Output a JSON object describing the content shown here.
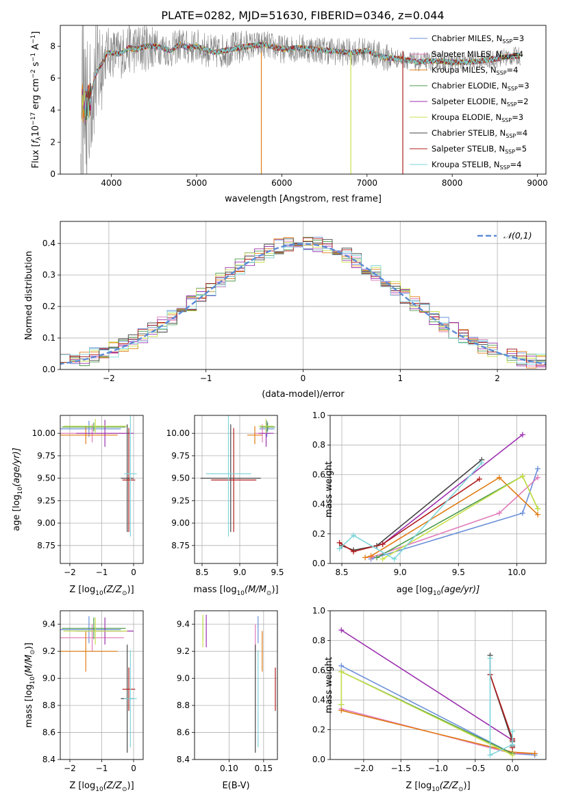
{
  "figure": {
    "title": "PLATE=0282, MJD=51630, FIBERID=0346, z=0.044"
  },
  "colors": {
    "Chabrier MILES": "#6a8fd8",
    "Salpeter MILES": "#e07ab9",
    "Kroupa MILES": "#e07b12",
    "Chabrier ELODIE": "#4c9a4c",
    "Salpeter ELODIE": "#9b2fae",
    "Kroupa ELODIE": "#c8e04a",
    "Chabrier STELIB": "#444444",
    "Salpeter STELIB": "#b01c1c",
    "Kroupa STELIB": "#7ed6db",
    "data": "#808080",
    "normal": "#5b8ad6"
  },
  "chart_data": [
    {
      "id": "spectrum",
      "type": "line",
      "xlabel": "wavelength [Angstrom, rest frame]",
      "ylabel": "Flux [f_λ10^-17 erg cm^-2 s^-1 A^-1]",
      "xlim": [
        3400,
        9100
      ],
      "ylim": [
        0,
        9.3
      ],
      "xticks": [
        4000,
        5000,
        6000,
        7000,
        8000,
        9000
      ],
      "yticks": [
        0,
        2,
        4,
        6,
        8
      ],
      "grid": false,
      "legend_position": "right",
      "continuum": {
        "x": [
          3650,
          3700,
          3750,
          3800,
          3850,
          3900,
          3950,
          4000,
          4100,
          4200,
          4300,
          4400,
          4500,
          4600,
          4700,
          4800,
          4900,
          5000,
          5200,
          5400,
          5600,
          5800,
          6000,
          6200,
          6400,
          6600,
          6800,
          7000,
          7200,
          7400,
          7600,
          7800,
          8000,
          8200,
          8400,
          8600,
          8800
        ],
        "y": [
          4.5,
          4.2,
          4.6,
          6.0,
          6.6,
          7.0,
          7.6,
          7.6,
          7.5,
          7.9,
          7.8,
          8.0,
          8.0,
          7.9,
          7.7,
          8.1,
          7.9,
          8.0,
          7.6,
          7.8,
          8.0,
          8.1,
          7.8,
          7.9,
          7.8,
          7.7,
          7.6,
          7.7,
          7.3,
          7.2,
          7.0,
          7.1,
          7.0,
          7.0,
          7.1,
          7.3,
          7.4
        ]
      },
      "legend": [
        {
          "label": "Chabrier MILES, N_SSP=3",
          "text": "Chabrier MILES, N",
          "n": "=3"
        },
        {
          "label": "Salpeter MILES, N_SSP=4",
          "text": "Salpeter MILES, N",
          "n": "=4"
        },
        {
          "label": "Kroupa MILES, N_SSP=4",
          "text": "Kroupa MILES, N",
          "n": "=4"
        },
        {
          "label": "Chabrier ELODIE, N_SSP=3",
          "text": "Chabrier ELODIE, N",
          "n": "=3"
        },
        {
          "label": "Salpeter ELODIE, N_SSP=2",
          "text": "Salpeter ELODIE, N",
          "n": "=2"
        },
        {
          "label": "Kroupa ELODIE, N_SSP=3",
          "text": "Kroupa ELODIE, N",
          "n": "=3"
        },
        {
          "label": "Chabrier STELIB, N_SSP=4",
          "text": "Chabrier STELIB, N",
          "n": "=4"
        },
        {
          "label": "Salpeter STELIB, N_SSP=5",
          "text": "Salpeter STELIB, N",
          "n": "=5"
        },
        {
          "label": "Kroupa STELIB, N_SSP=4",
          "text": "Kroupa STELIB, N",
          "n": "=4"
        }
      ]
    },
    {
      "id": "residuals",
      "type": "line",
      "xlabel": "(data-model)/error",
      "ylabel": "Normed distribution",
      "xlim": [
        -2.5,
        2.5
      ],
      "ylim": [
        0,
        0.47
      ],
      "xticks": [
        -2,
        -1,
        0,
        1,
        2
      ],
      "yticks": [
        0.0,
        0.1,
        0.2,
        0.3,
        0.4
      ],
      "grid": true,
      "legend": "𝒩(0,1)",
      "legend_position": "top-right",
      "bin_width": 0.1
    },
    {
      "id": "age_vs_Z",
      "type": "scatter",
      "xlabel_main": "Z [log",
      "xlabel_sub": "10",
      "xlabel_rest": "(Z/Z",
      "xlabel_sun": "⊙",
      "xlabel_end": ")]",
      "ylabel": "age  [log10(age/yr)]",
      "ylabel_main": "age  [log",
      "ylabel_sub": "10",
      "ylabel_rest": "(age/yr)]",
      "xlim": [
        -2.3,
        0.3
      ],
      "ylim": [
        8.55,
        10.2
      ],
      "xticks": [
        -2,
        -1,
        0
      ],
      "yticks": [
        8.75,
        9.0,
        9.25,
        9.5,
        9.75,
        10.0
      ],
      "grid": true,
      "points": [
        {
          "s": "Chabrier MILES",
          "x": -1.4,
          "y": 10.05,
          "xe": 1.0,
          "ye": 0.09
        },
        {
          "s": "Salpeter MILES",
          "x": -1.3,
          "y": 10.0,
          "xe": 1.0,
          "ye": 0.1
        },
        {
          "s": "Kroupa MILES",
          "x": -1.5,
          "y": 9.98,
          "xe": 1.0,
          "ye": 0.1
        },
        {
          "s": "Chabrier ELODIE",
          "x": -1.25,
          "y": 10.07,
          "xe": 1.0,
          "ye": 0.05
        },
        {
          "s": "Salpeter ELODIE",
          "x": -0.9,
          "y": 10.0,
          "xe": 0.9,
          "ye": 0.15
        },
        {
          "s": "Kroupa ELODIE",
          "x": -1.2,
          "y": 10.08,
          "xe": 1.0,
          "ye": 0.08
        },
        {
          "s": "Chabrier STELIB",
          "x": -0.2,
          "y": 9.5,
          "xe": 0.2,
          "ye": 0.6
        },
        {
          "s": "Salpeter STELIB",
          "x": -0.15,
          "y": 9.48,
          "xe": 0.2,
          "ye": 0.58
        },
        {
          "s": "Kroupa STELIB",
          "x": -0.1,
          "y": 9.55,
          "xe": 0.2,
          "ye": 0.7
        }
      ]
    },
    {
      "id": "age_vs_mass",
      "type": "scatter",
      "xlabel_main": "mass [log",
      "xlabel_sub": "10",
      "xlabel_rest": "(M/M",
      "xlabel_sun": "⊙",
      "xlabel_end": ")]",
      "xlim": [
        8.4,
        9.5
      ],
      "ylim": [
        8.55,
        10.2
      ],
      "xticks": [
        8.5,
        9.0,
        9.5
      ],
      "yticks": [
        8.75,
        9.0,
        9.25,
        9.5,
        9.75,
        10.0
      ],
      "grid": true,
      "points": [
        {
          "s": "Chabrier MILES",
          "x": 9.36,
          "y": 10.05,
          "xe": 0.1,
          "ye": 0.09
        },
        {
          "s": "Salpeter MILES",
          "x": 9.3,
          "y": 10.0,
          "xe": 0.1,
          "ye": 0.1
        },
        {
          "s": "Kroupa MILES",
          "x": 9.2,
          "y": 9.98,
          "xe": 0.1,
          "ye": 0.1
        },
        {
          "s": "Chabrier ELODIE",
          "x": 9.37,
          "y": 10.07,
          "xe": 0.1,
          "ye": 0.05
        },
        {
          "s": "Salpeter ELODIE",
          "x": 9.35,
          "y": 10.0,
          "xe": 0.1,
          "ye": 0.15
        },
        {
          "s": "Kroupa ELODIE",
          "x": 9.35,
          "y": 10.08,
          "xe": 0.1,
          "ye": 0.08
        },
        {
          "s": "Chabrier STELIB",
          "x": 8.88,
          "y": 9.5,
          "xe": 0.4,
          "ye": 0.6
        },
        {
          "s": "Salpeter STELIB",
          "x": 8.92,
          "y": 9.48,
          "xe": 0.3,
          "ye": 0.58
        },
        {
          "s": "Kroupa STELIB",
          "x": 8.85,
          "y": 9.55,
          "xe": 0.3,
          "ye": 0.7
        }
      ]
    },
    {
      "id": "weight_vs_age",
      "type": "line",
      "xlabel_main": "age  [log",
      "xlabel_sub": "10",
      "xlabel_rest": "(age/yr)]",
      "ylabel": "mass weight",
      "xlim": [
        8.4,
        10.25
      ],
      "ylim": [
        0,
        1.0
      ],
      "xticks": [
        8.5,
        9.0,
        9.5,
        10.0
      ],
      "yticks": [
        0.0,
        0.2,
        0.4,
        0.6,
        0.8,
        1.0
      ],
      "grid": true,
      "series": [
        {
          "s": "Chabrier MILES",
          "x": [
            8.75,
            10.05,
            10.18
          ],
          "y": [
            0.03,
            0.34,
            0.64
          ]
        },
        {
          "s": "Salpeter MILES",
          "x": [
            8.75,
            9.85,
            10.18
          ],
          "y": [
            0.04,
            0.34,
            0.58
          ]
        },
        {
          "s": "Kroupa MILES",
          "x": [
            8.7,
            8.75,
            9.85,
            10.18
          ],
          "y": [
            0.04,
            0.05,
            0.58,
            0.33
          ]
        },
        {
          "s": "Chabrier ELODIE",
          "x": [
            8.8,
            10.05,
            10.18
          ],
          "y": [
            0.04,
            0.59,
            0.37
          ]
        },
        {
          "s": "Salpeter ELODIE",
          "x": [
            8.85,
            10.05
          ],
          "y": [
            0.13,
            0.87
          ]
        },
        {
          "s": "Kroupa ELODIE",
          "x": [
            8.85,
            10.05,
            10.18
          ],
          "y": [
            0.03,
            0.59,
            0.37
          ]
        },
        {
          "s": "Chabrier STELIB",
          "x": [
            8.5,
            8.6,
            8.8,
            9.7
          ],
          "y": [
            0.12,
            0.09,
            0.12,
            0.7
          ]
        },
        {
          "s": "Salpeter STELIB",
          "x": [
            8.48,
            8.6,
            8.85,
            9.68
          ],
          "y": [
            0.14,
            0.08,
            0.13,
            0.57
          ]
        },
        {
          "s": "Kroupa STELIB",
          "x": [
            8.48,
            8.6,
            8.95,
            9.7
          ],
          "y": [
            0.1,
            0.19,
            0.03,
            0.68
          ]
        }
      ]
    },
    {
      "id": "mass_vs_Z",
      "type": "scatter",
      "xlabel_main": "Z [log",
      "xlabel_sub": "10",
      "xlabel_rest": "(Z/Z",
      "xlabel_sun": "⊙",
      "xlabel_end": ")]",
      "ylabel_main": "mass [log",
      "ylabel_sub": "10",
      "ylabel_rest": "(M/M",
      "ylabel_sun": "⊙",
      "ylabel_end": ")]",
      "xlim": [
        -2.3,
        0.3
      ],
      "ylim": [
        8.4,
        9.5
      ],
      "xticks": [
        -2,
        -1,
        0
      ],
      "yticks": [
        8.4,
        8.6,
        8.8,
        9.0,
        9.2,
        9.4
      ],
      "grid": true,
      "points": [
        {
          "s": "Chabrier MILES",
          "x": -1.4,
          "y": 9.36,
          "xe": 1.0,
          "ye": 0.1
        },
        {
          "s": "Salpeter MILES",
          "x": -1.3,
          "y": 9.3,
          "xe": 1.0,
          "ye": 0.1
        },
        {
          "s": "Kroupa MILES",
          "x": -1.5,
          "y": 9.2,
          "xe": 1.0,
          "ye": 0.15
        },
        {
          "s": "Chabrier ELODIE",
          "x": -1.25,
          "y": 9.37,
          "xe": 1.0,
          "ye": 0.08
        },
        {
          "s": "Salpeter ELODIE",
          "x": -0.9,
          "y": 9.35,
          "xe": 0.9,
          "ye": 0.1
        },
        {
          "s": "Kroupa ELODIE",
          "x": -1.2,
          "y": 9.35,
          "xe": 1.0,
          "ye": 0.1
        },
        {
          "s": "Chabrier STELIB",
          "x": -0.2,
          "y": 8.85,
          "xe": 0.2,
          "ye": 0.4
        },
        {
          "s": "Salpeter STELIB",
          "x": -0.15,
          "y": 8.92,
          "xe": 0.2,
          "ye": 0.16
        },
        {
          "s": "Kroupa STELIB",
          "x": -0.1,
          "y": 8.85,
          "xe": 0.2,
          "ye": 0.36
        }
      ]
    },
    {
      "id": "mass_vs_ebv",
      "type": "scatter",
      "xlabel": "E(B-V)",
      "xlim": [
        0.05,
        0.17
      ],
      "ylim": [
        8.4,
        9.5
      ],
      "xticks": [
        0.1,
        0.15
      ],
      "yticks": [
        8.4,
        8.6,
        8.8,
        9.0,
        9.2,
        9.4
      ],
      "grid": true,
      "points": [
        {
          "s": "Chabrier MILES",
          "x": 0.142,
          "y": 9.36,
          "ye": 0.1
        },
        {
          "s": "Salpeter MILES",
          "x": 0.138,
          "y": 9.3,
          "ye": 0.1
        },
        {
          "s": "Kroupa MILES",
          "x": 0.148,
          "y": 9.2,
          "ye": 0.15
        },
        {
          "s": "Chabrier ELODIE",
          "x": 0.062,
          "y": 9.37,
          "ye": 0.08
        },
        {
          "s": "Salpeter ELODIE",
          "x": 0.067,
          "y": 9.35,
          "ye": 0.12
        },
        {
          "s": "Kroupa ELODIE",
          "x": 0.062,
          "y": 9.35,
          "ye": 0.12
        },
        {
          "s": "Chabrier STELIB",
          "x": 0.138,
          "y": 8.85,
          "ye": 0.4
        },
        {
          "s": "Salpeter STELIB",
          "x": 0.167,
          "y": 8.92,
          "ye": 0.16
        },
        {
          "s": "Kroupa STELIB",
          "x": 0.142,
          "y": 8.85,
          "ye": 0.36
        }
      ]
    },
    {
      "id": "weight_vs_Z",
      "type": "line",
      "xlabel_main": "Z [log",
      "xlabel_sub": "10",
      "xlabel_rest": "(Z/Z",
      "xlabel_sun": "⊙",
      "xlabel_end": ")]",
      "ylabel": "mass weight",
      "xlim": [
        -2.45,
        0.45
      ],
      "ylim": [
        0,
        1.0
      ],
      "xticks": [
        -2.0,
        -1.5,
        -1.0,
        -0.5,
        0.0
      ],
      "yticks": [
        0.0,
        0.2,
        0.4,
        0.6,
        0.8,
        1.0
      ],
      "grid": true,
      "series": [
        {
          "s": "Chabrier MILES",
          "x": [
            -2.3,
            0.0,
            0.3
          ],
          "y": [
            0.63,
            0.04,
            0.03
          ]
        },
        {
          "s": "Salpeter MILES",
          "x": [
            -2.3,
            0.0,
            0.3
          ],
          "y": [
            0.34,
            0.04,
            0.04
          ]
        },
        {
          "s": "Kroupa MILES",
          "x": [
            -2.3,
            0.0,
            0.3
          ],
          "y": [
            0.33,
            0.05,
            0.04
          ]
        },
        {
          "s": "Chabrier ELODIE",
          "x": [
            -2.3,
            -2.3,
            0.0
          ],
          "y": [
            0.37,
            0.59,
            0.04
          ]
        },
        {
          "s": "Salpeter ELODIE",
          "x": [
            -2.3,
            0.0
          ],
          "y": [
            0.87,
            0.13
          ]
        },
        {
          "s": "Kroupa ELODIE",
          "x": [
            -2.3,
            -2.3,
            0.0
          ],
          "y": [
            0.37,
            0.59,
            0.03
          ]
        },
        {
          "s": "Chabrier STELIB",
          "x": [
            -0.3,
            -0.3,
            0.0,
            0.0
          ],
          "y": [
            0.7,
            0.57,
            0.12,
            0.09
          ]
        },
        {
          "s": "Salpeter STELIB",
          "x": [
            -0.3,
            0.0,
            0.0,
            0.0
          ],
          "y": [
            0.57,
            0.14,
            0.08,
            0.13
          ]
        },
        {
          "s": "Kroupa STELIB",
          "x": [
            -0.3,
            -0.3,
            0.0,
            0.0
          ],
          "y": [
            0.68,
            0.03,
            0.1,
            0.19
          ]
        }
      ]
    }
  ]
}
